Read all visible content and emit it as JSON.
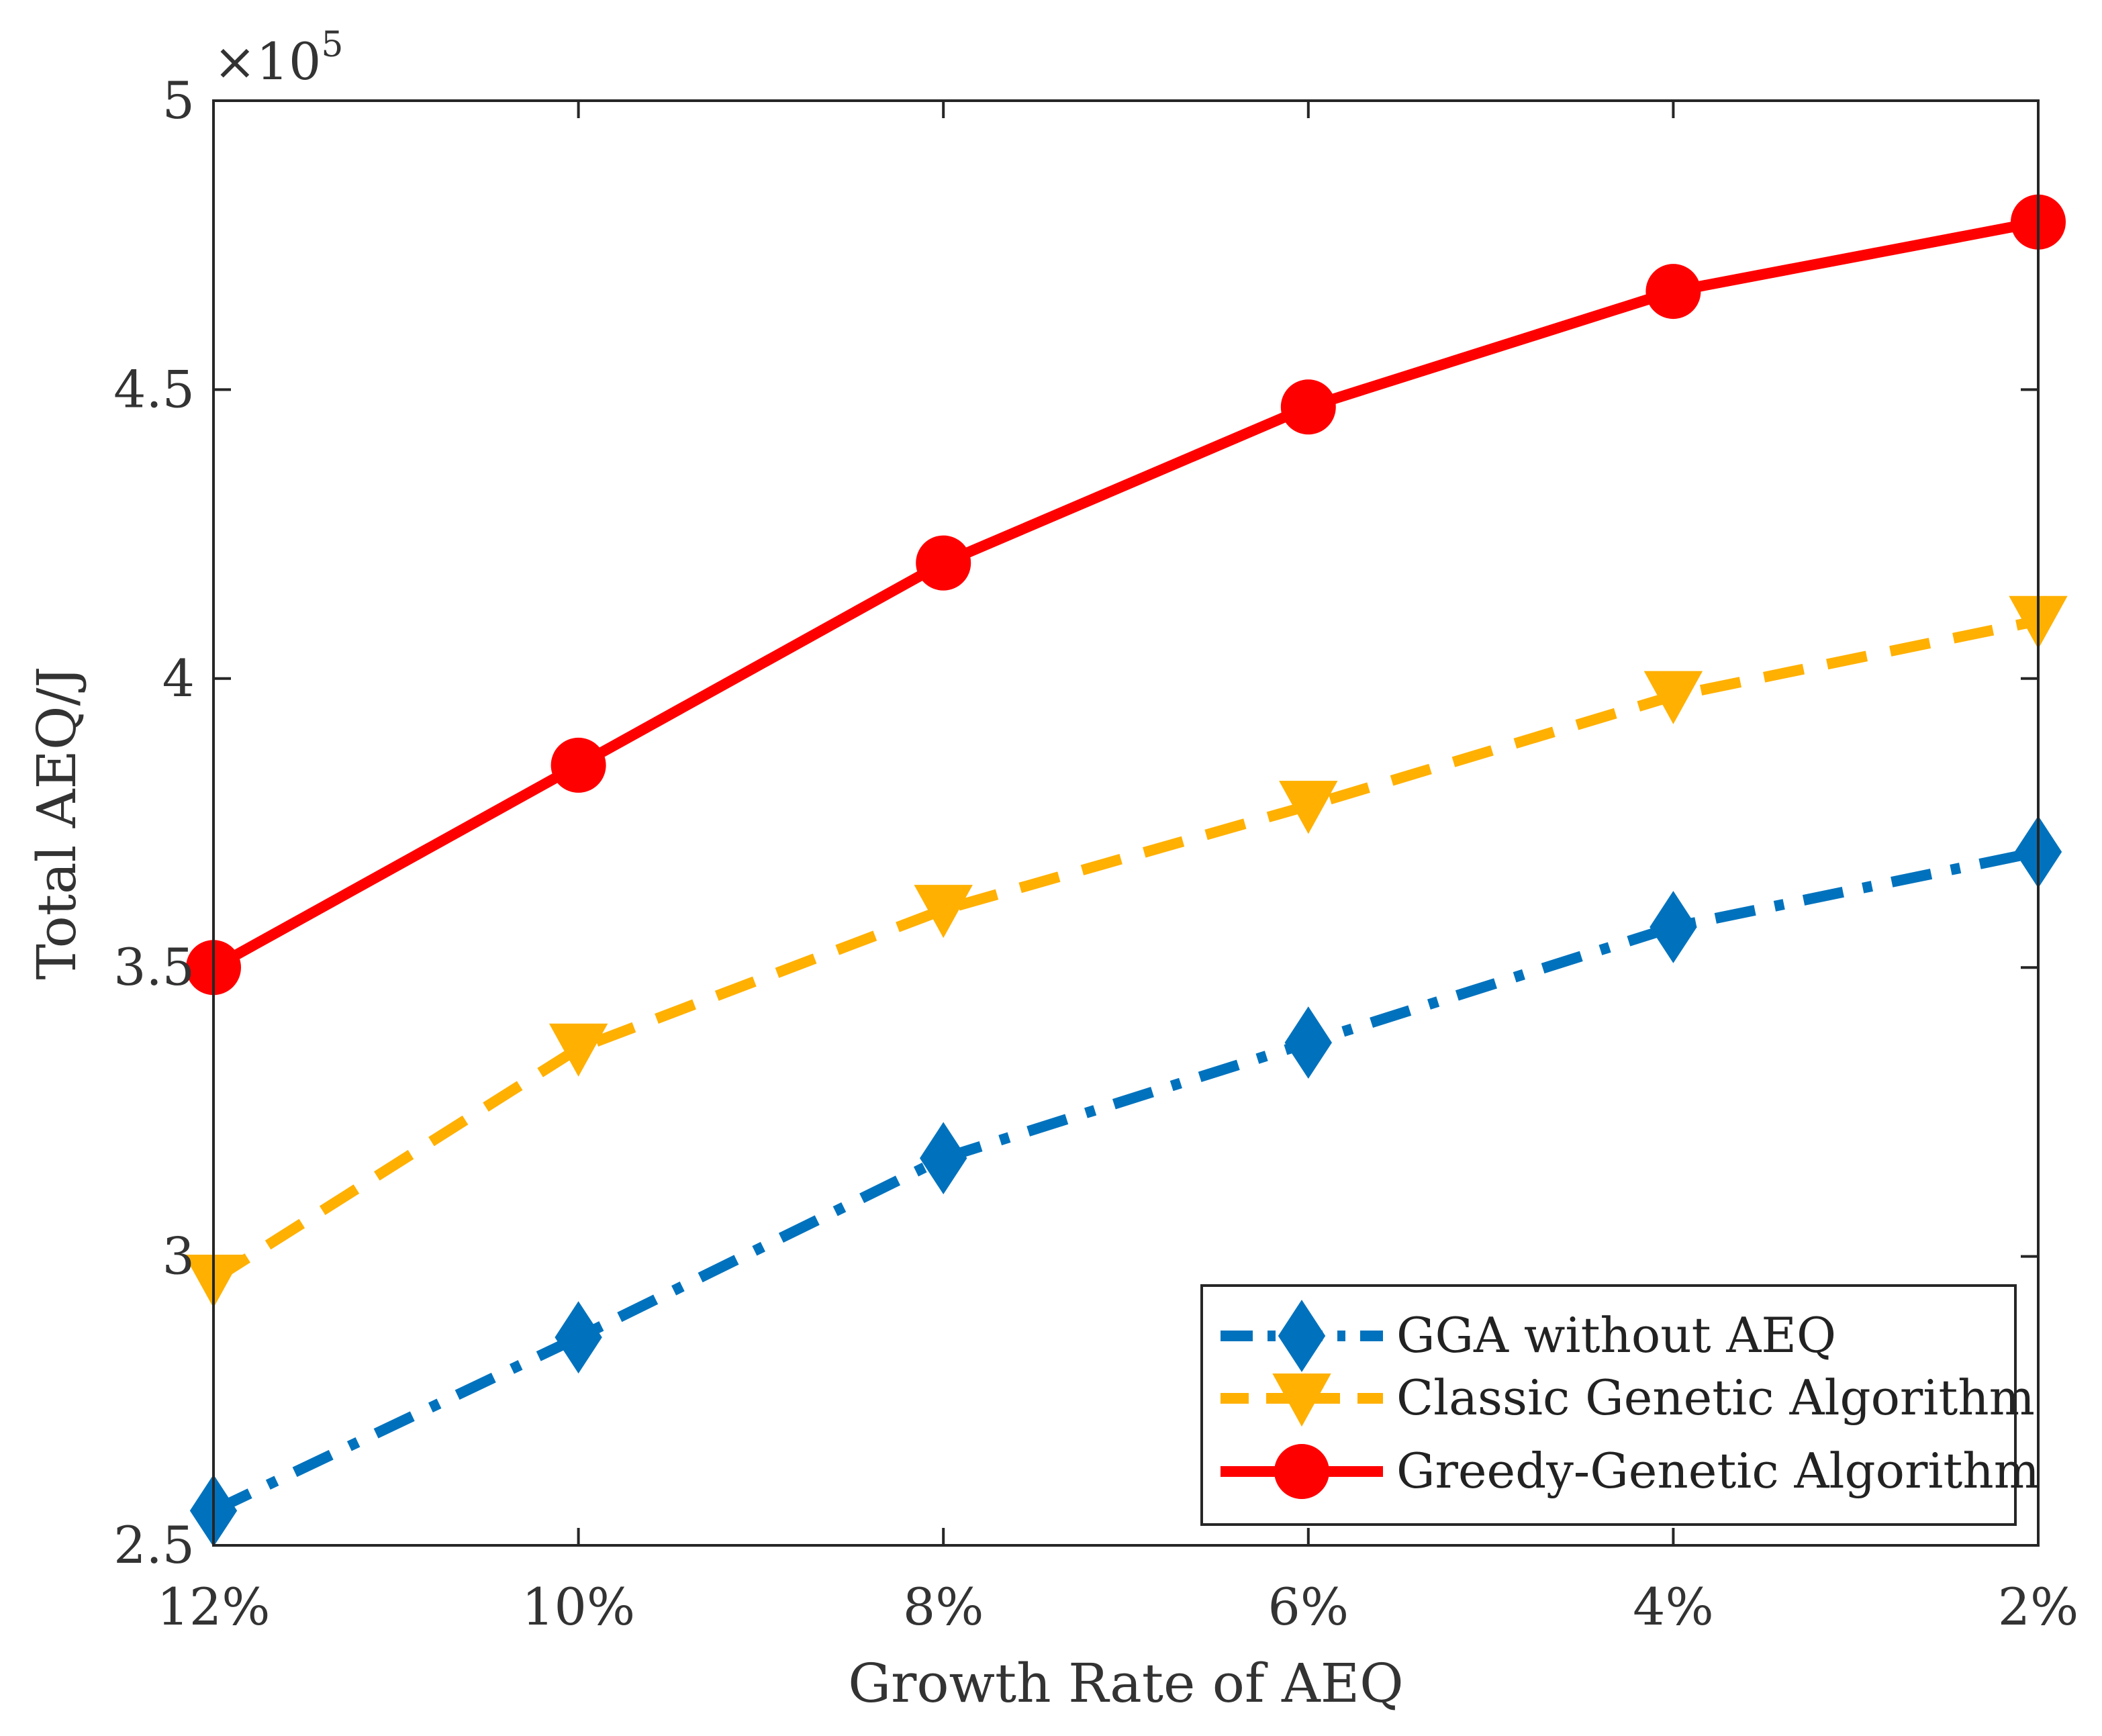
{
  "chart_data": {
    "type": "line",
    "title": "",
    "xlabel": "Growth Rate of AEQ",
    "ylabel": "Total AEQ/J",
    "categories": [
      "12%",
      "10%",
      "8%",
      "6%",
      "4%",
      "2%"
    ],
    "ylim": [
      2.5,
      5
    ],
    "yticks": [
      2.5,
      3,
      3.5,
      4,
      4.5,
      5
    ],
    "ytick_labels": [
      "2.5",
      "3",
      "3.5",
      "4",
      "4.5",
      "5"
    ],
    "y_multiplier": {
      "base": "×10",
      "exp": "5"
    },
    "grid": false,
    "legend_position": "bottom-right",
    "series": [
      {
        "name": "GGA without AEQ",
        "values": [
          2.56,
          2.86,
          3.17,
          3.37,
          3.57,
          3.7
        ],
        "color": "#0072BD",
        "line_style": "dash-dot",
        "marker": "diamond"
      },
      {
        "name": "Classic Genetic Algorithm",
        "values": [
          2.96,
          3.36,
          3.6,
          3.78,
          3.97,
          4.1
        ],
        "color": "#FFB000",
        "line_style": "dashed",
        "marker": "triangle-down"
      },
      {
        "name": "Greedy-Genetic Algorithm",
        "values": [
          3.5,
          3.85,
          4.2,
          4.47,
          4.67,
          4.79
        ],
        "color": "#FF0000",
        "line_style": "solid",
        "marker": "circle"
      }
    ]
  }
}
